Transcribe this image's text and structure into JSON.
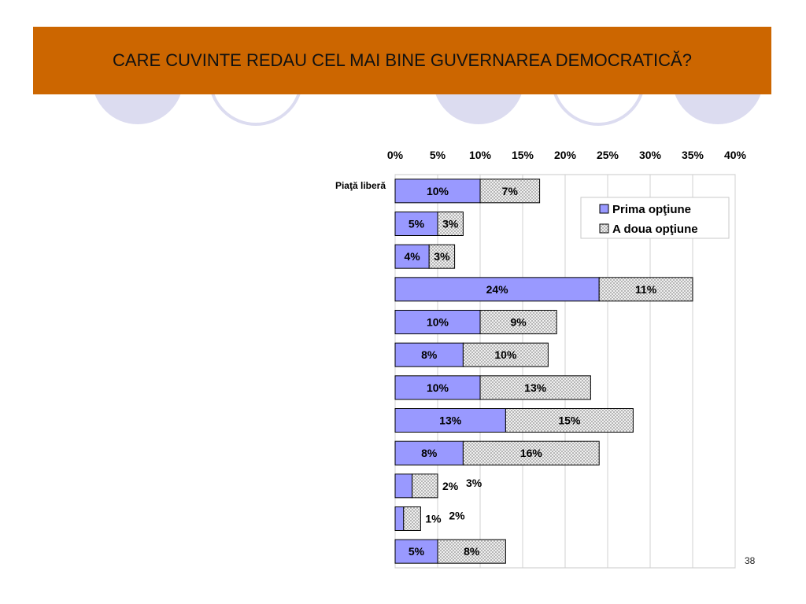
{
  "slide": {
    "title": "CARE CUVINTE REDAU CEL MAI BINE GUVERNAREA DEMOCRATICĂ?",
    "page_number": "38"
  },
  "colors": {
    "title_bar": "#cc6600",
    "circle_fill": "#dcdcf0",
    "series1": "#9999ff",
    "series2_pattern": "#c0c0c0"
  },
  "chart_data": {
    "type": "bar",
    "orientation": "horizontal",
    "stacked": true,
    "categories": [
      "Piaţă liberă",
      "",
      "",
      "",
      "",
      "",
      "",
      "",
      "",
      "",
      "",
      ""
    ],
    "series": [
      {
        "name": "Prima opţiune",
        "values": [
          10,
          5,
          4,
          24,
          10,
          8,
          10,
          13,
          8,
          2,
          1,
          5
        ]
      },
      {
        "name": "A doua opţiune",
        "values": [
          7,
          3,
          3,
          11,
          9,
          10,
          13,
          15,
          16,
          3,
          2,
          8
        ]
      }
    ],
    "xlim": [
      0,
      40
    ],
    "x_ticks": [
      "0%",
      "5%",
      "10%",
      "15%",
      "20%",
      "25%",
      "30%",
      "35%",
      "40%"
    ],
    "x_axis_position": "top",
    "grid": true,
    "legend": "top-right",
    "value_suffix": "%"
  }
}
